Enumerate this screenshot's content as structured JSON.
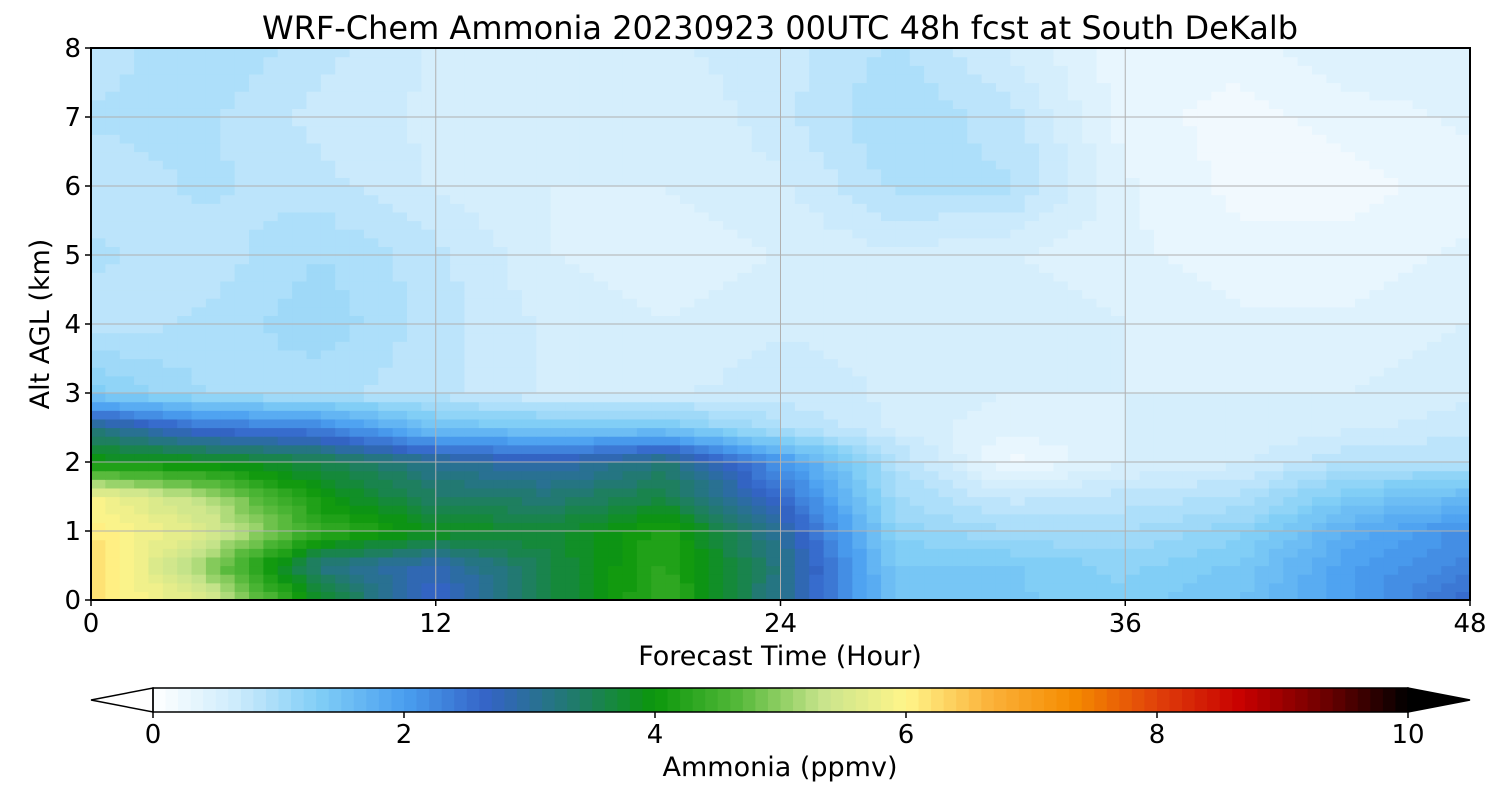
{
  "chart_data": {
    "type": "heatmap",
    "title": "WRF-Chem Ammonia  20230923 00UTC 48h fcst at South DeKalb",
    "xlabel": "Forecast Time (Hour)",
    "ylabel": "Alt AGL (km)",
    "x_ticks": [
      "0",
      "12",
      "24",
      "36",
      "48"
    ],
    "y_ticks": [
      "0",
      "1",
      "2",
      "3",
      "4",
      "5",
      "6",
      "7",
      "8"
    ],
    "xlim": [
      0,
      48
    ],
    "ylim": [
      0,
      8
    ],
    "grid": true,
    "x": [
      0,
      4,
      8,
      12,
      16,
      20,
      24,
      28,
      32,
      36,
      40,
      44,
      48
    ],
    "y": [
      0,
      0.5,
      1,
      1.5,
      2,
      2.5,
      3,
      4,
      5,
      6,
      7,
      8
    ],
    "z": [
      [
        6.2,
        5.6,
        3.8,
        2.6,
        3.6,
        4.4,
        3.1,
        1.5,
        1.4,
        1.3,
        1.5,
        2.0,
        2.6
      ],
      [
        6.3,
        5.0,
        3.2,
        2.8,
        3.6,
        4.3,
        3.2,
        1.4,
        1.4,
        1.2,
        1.4,
        2.0,
        2.3
      ],
      [
        6.1,
        5.6,
        4.4,
        3.9,
        3.7,
        4.2,
        3.0,
        1.2,
        1.0,
        1.0,
        1.2,
        1.8,
        2.2
      ],
      [
        5.9,
        5.2,
        4.0,
        3.4,
        3.3,
        3.6,
        2.6,
        1.0,
        0.7,
        0.8,
        0.9,
        1.4,
        1.6
      ],
      [
        4.0,
        3.9,
        3.6,
        3.1,
        2.8,
        3.3,
        2.1,
        0.9,
        0.2,
        0.5,
        0.6,
        0.9,
        0.9
      ],
      [
        3.2,
        2.5,
        2.3,
        1.5,
        1.4,
        1.4,
        0.9,
        0.6,
        0.4,
        0.5,
        0.5,
        0.6,
        0.7
      ],
      [
        1.3,
        1.0,
        0.9,
        0.8,
        0.6,
        0.6,
        0.7,
        0.6,
        0.5,
        0.5,
        0.5,
        0.5,
        0.6
      ],
      [
        0.8,
        0.9,
        1.1,
        0.8,
        0.6,
        0.5,
        0.6,
        0.6,
        0.6,
        0.5,
        0.4,
        0.4,
        0.5
      ],
      [
        0.9,
        0.8,
        1.0,
        0.8,
        0.5,
        0.4,
        0.5,
        0.6,
        0.5,
        0.4,
        0.3,
        0.3,
        0.4
      ],
      [
        0.8,
        0.9,
        0.8,
        0.6,
        0.5,
        0.5,
        0.6,
        0.9,
        0.9,
        0.4,
        0.2,
        0.2,
        0.3
      ],
      [
        0.9,
        0.9,
        0.7,
        0.6,
        0.5,
        0.5,
        0.7,
        1.0,
        0.8,
        0.3,
        0.2,
        0.3,
        0.4
      ],
      [
        0.8,
        1.0,
        0.8,
        0.6,
        0.5,
        0.6,
        0.7,
        0.9,
        0.6,
        0.3,
        0.3,
        0.5,
        0.5
      ]
    ],
    "colorbar": {
      "label": "Ammonia  (ppmv)",
      "ticks": [
        "0",
        "2",
        "4",
        "6",
        "8",
        "10"
      ],
      "min": 0,
      "max": 10,
      "extend": "both",
      "colors": [
        "#ffffff",
        "#cdebfc",
        "#7fcdf6",
        "#4a9ff0",
        "#3463c6",
        "#217a6f",
        "#0b970b",
        "#55b93a",
        "#c8e48c",
        "#fff58a",
        "#fbb23a",
        "#f58b00",
        "#e0400a",
        "#c80000",
        "#6e0000",
        "#000000"
      ]
    }
  }
}
